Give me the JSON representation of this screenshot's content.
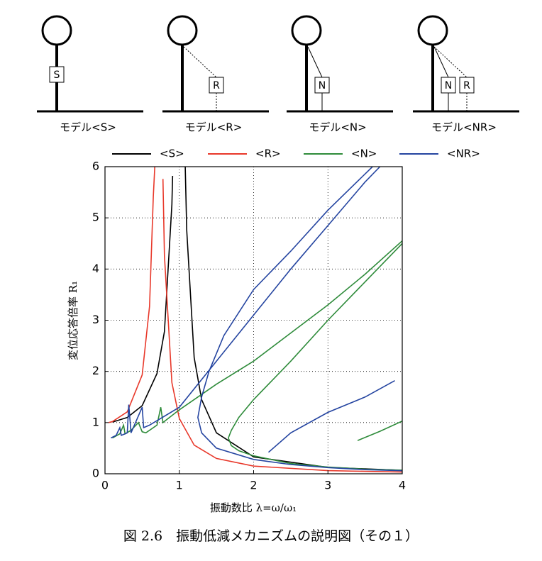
{
  "models": [
    {
      "label": "モデル<S>",
      "boxes": [
        "S"
      ]
    },
    {
      "label": "モデル<R>",
      "boxes": [
        "R"
      ]
    },
    {
      "label": "モデル<N>",
      "boxes": [
        "N"
      ]
    },
    {
      "label": "モデル<NR>",
      "boxes": [
        "N",
        "R"
      ]
    }
  ],
  "caption": "図 2.6　振動低減メカニズムの説明図（その１）",
  "chart_data": {
    "type": "line",
    "x_label": "振動数比  λ=ω/ω₁",
    "y_label": "変位応答倍率  R₁",
    "xlim": [
      0,
      4
    ],
    "ylim": [
      0,
      6
    ],
    "xticks": [
      0,
      1,
      2,
      3,
      4
    ],
    "yticks": [
      0,
      1,
      2,
      3,
      4,
      5,
      6
    ],
    "grid": true,
    "legend": "top",
    "series": [
      {
        "name": "<S>",
        "color": "#000000",
        "x": [
          0.1,
          0.3,
          0.5,
          0.7,
          0.8,
          0.9,
          0.91,
          null,
          1.08,
          1.1,
          1.2,
          1.3,
          1.5,
          2,
          3,
          4
        ],
        "values": [
          1.01,
          1.1,
          1.33,
          1.96,
          2.78,
          5.26,
          5.82,
          null,
          6.0,
          4.76,
          2.27,
          1.45,
          0.8,
          0.33,
          0.125,
          0.067
        ]
      },
      {
        "name": "<R>",
        "color": "#e8382a",
        "x": [
          0.05,
          0.1,
          0.3,
          0.5,
          0.6,
          0.65,
          0.67,
          null,
          0.78,
          0.8,
          0.9,
          1.0,
          1.2,
          1.5,
          2,
          3,
          4
        ],
        "values": [
          1.0,
          1.02,
          1.21,
          1.93,
          3.27,
          5.42,
          6.0,
          null,
          5.76,
          4.26,
          1.78,
          1.08,
          0.56,
          0.3,
          0.15,
          0.061,
          0.033
        ]
      },
      {
        "name": "<N>",
        "color": "#2e8b3a",
        "x": [
          0.1,
          0.2,
          0.25,
          0.27,
          0.35,
          0.45,
          0.5,
          0.55,
          0.7,
          0.75,
          0.78,
          1.0,
          1.5,
          2,
          2.5,
          3,
          3.5,
          4,
          null,
          4,
          3.5,
          3,
          2.5,
          2,
          1.8,
          1.7,
          1.66,
          1.7,
          1.8,
          2,
          2.5,
          3,
          3.5,
          4,
          null,
          3.4,
          3.7,
          4
        ],
        "values": [
          0.7,
          0.78,
          0.95,
          0.78,
          0.85,
          1.0,
          0.82,
          0.8,
          0.95,
          1.3,
          1.0,
          1.25,
          1.75,
          2.2,
          2.75,
          3.3,
          3.9,
          4.55,
          null,
          4.5,
          3.75,
          3.0,
          2.2,
          1.45,
          1.1,
          0.85,
          0.7,
          0.55,
          0.45,
          0.35,
          0.2,
          0.13,
          0.09,
          0.07,
          null,
          0.65,
          0.83,
          1.03
        ]
      },
      {
        "name": "<NR>",
        "color": "#2444a0",
        "x": [
          0.08,
          0.15,
          0.2,
          0.22,
          0.3,
          0.32,
          0.35,
          0.5,
          0.52,
          0.6,
          1,
          1.5,
          2,
          2.5,
          3,
          3.5,
          3.7,
          null,
          3.6,
          3,
          2.5,
          2,
          1.6,
          1.4,
          1.3,
          1.25,
          1.3,
          1.5,
          2,
          2.5,
          3,
          3.5,
          4,
          null,
          2.2,
          2.5,
          3,
          3.5,
          3.9
        ],
        "values": [
          0.7,
          0.75,
          0.9,
          0.75,
          0.8,
          1.35,
          0.8,
          1.3,
          0.9,
          0.95,
          1.3,
          2.2,
          3.1,
          4.0,
          4.85,
          5.7,
          6.0,
          null,
          6.0,
          5.15,
          4.35,
          3.6,
          2.7,
          2.0,
          1.5,
          1.1,
          0.8,
          0.5,
          0.28,
          0.18,
          0.12,
          0.08,
          0.06,
          null,
          0.42,
          0.8,
          1.2,
          1.5,
          1.82
        ]
      }
    ]
  }
}
